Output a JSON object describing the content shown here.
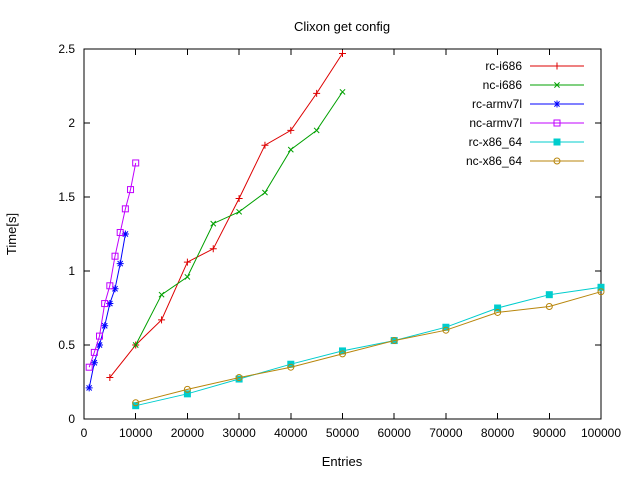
{
  "chart_data": {
    "type": "line",
    "title": "Clixon get config",
    "xlabel": "Entries",
    "ylabel": "Time[s]",
    "xlim": [
      0,
      100000
    ],
    "ylim": [
      0,
      2.5
    ],
    "grid": false,
    "legend_position": "top-right",
    "x_ticks": [
      0,
      10000,
      20000,
      30000,
      40000,
      50000,
      60000,
      70000,
      80000,
      90000,
      100000
    ],
    "x_tick_labels": [
      "0",
      "10000",
      "20000",
      "30000",
      "40000",
      "50000",
      "60000",
      "70000",
      "80000",
      "90000",
      "100000"
    ],
    "y_ticks": [
      0,
      0.5,
      1,
      1.5,
      2,
      2.5
    ],
    "y_tick_labels": [
      "0",
      "0.5",
      "1",
      "1.5",
      "2",
      "2.5"
    ],
    "series": [
      {
        "name": "rc-i686",
        "color": "#dd0000",
        "marker": "plus",
        "x": [
          5000,
          10000,
          15000,
          20000,
          25000,
          30000,
          35000,
          40000,
          45000,
          50000
        ],
        "y": [
          0.28,
          0.5,
          0.67,
          1.06,
          1.15,
          1.49,
          1.85,
          1.95,
          2.2,
          2.47
        ]
      },
      {
        "name": "nc-i686",
        "color": "#00a000",
        "marker": "cross",
        "x": [
          10000,
          15000,
          20000,
          25000,
          30000,
          35000,
          40000,
          45000,
          50000
        ],
        "y": [
          0.5,
          0.84,
          0.96,
          1.32,
          1.4,
          1.53,
          1.82,
          1.95,
          2.21
        ]
      },
      {
        "name": "rc-armv7l",
        "color": "#0000ff",
        "marker": "asterisk",
        "x": [
          1000,
          2000,
          3000,
          4000,
          5000,
          6000,
          7000,
          8000
        ],
        "y": [
          0.21,
          0.38,
          0.5,
          0.63,
          0.78,
          0.88,
          1.05,
          1.25
        ]
      },
      {
        "name": "nc-armv7l",
        "color": "#c000ff",
        "marker": "square-open",
        "x": [
          1000,
          2000,
          3000,
          4000,
          5000,
          6000,
          7000,
          8000,
          9000,
          10000
        ],
        "y": [
          0.35,
          0.45,
          0.56,
          0.78,
          0.9,
          1.1,
          1.26,
          1.42,
          1.55,
          1.73
        ]
      },
      {
        "name": "rc-x86_64",
        "color": "#00cdcd",
        "marker": "square-filled",
        "x": [
          10000,
          20000,
          30000,
          40000,
          50000,
          60000,
          70000,
          80000,
          90000,
          100000
        ],
        "y": [
          0.09,
          0.17,
          0.27,
          0.37,
          0.46,
          0.53,
          0.62,
          0.75,
          0.84,
          0.89
        ]
      },
      {
        "name": "nc-x86_64",
        "color": "#b8860b",
        "marker": "circle-open",
        "x": [
          10000,
          20000,
          30000,
          40000,
          50000,
          60000,
          70000,
          80000,
          90000,
          100000
        ],
        "y": [
          0.11,
          0.2,
          0.28,
          0.35,
          0.44,
          0.53,
          0.6,
          0.72,
          0.76,
          0.86
        ]
      }
    ],
    "legend_entries": [
      "rc-i686",
      "nc-i686",
      "rc-armv7l",
      "nc-armv7l",
      "rc-x86_64",
      "nc-x86_64"
    ]
  }
}
